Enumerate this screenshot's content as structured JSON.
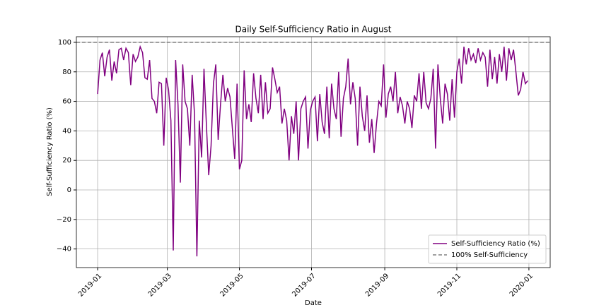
{
  "chart_data": {
    "type": "line",
    "title": "Daily Self-Sufficiency Ratio in August",
    "x_label": "Date",
    "y_label": "Self-Sufficiency Ratio (%)",
    "x": [
      0,
      2,
      4,
      6,
      8,
      10,
      12,
      14,
      16,
      18,
      20,
      22,
      24,
      26,
      28,
      30,
      32,
      34,
      36,
      38,
      40,
      42,
      44,
      46,
      48,
      50,
      52,
      54,
      56,
      58,
      60,
      62,
      64,
      66,
      68,
      70,
      72,
      74,
      76,
      78,
      80,
      82,
      84,
      86,
      88,
      90,
      92,
      94,
      96,
      98,
      100,
      102,
      104,
      106,
      108,
      110,
      112,
      114,
      116,
      118,
      120,
      122,
      124,
      126,
      128,
      130,
      132,
      134,
      136,
      138,
      140,
      142,
      144,
      146,
      148,
      150,
      152,
      154,
      156,
      158,
      160,
      162,
      164,
      166,
      168,
      170,
      172,
      174,
      176,
      178,
      180,
      182,
      184,
      186,
      188,
      190,
      192,
      194,
      196,
      198,
      200,
      202,
      204,
      206,
      208,
      210,
      212,
      214,
      216,
      218,
      220,
      222,
      224,
      226,
      228,
      230,
      232,
      234,
      236,
      238,
      240,
      242,
      244,
      246,
      248,
      250,
      252,
      254,
      256,
      258,
      260,
      262,
      264,
      266,
      268,
      270,
      272,
      274,
      276,
      278,
      280,
      282,
      284,
      286,
      288,
      290,
      292,
      294,
      296,
      298,
      300,
      302,
      304,
      306,
      308,
      310,
      312,
      314,
      316,
      318,
      320,
      322,
      324,
      326,
      328,
      330,
      332,
      334,
      336,
      338,
      340,
      342,
      344,
      346,
      348,
      350,
      352,
      354,
      356,
      358,
      360,
      362,
      364
    ],
    "series": [
      {
        "name": "Self-Sufficiency Ratio (%)",
        "color": "purple",
        "values": [
          65,
          88,
          93,
          77,
          90,
          95,
          74,
          87,
          79,
          95,
          96,
          88,
          96,
          93,
          71,
          92,
          87,
          90,
          97,
          93,
          76,
          75,
          88,
          62,
          60,
          52,
          73,
          72,
          30,
          76,
          68,
          47,
          -41,
          88,
          58,
          5,
          85,
          60,
          55,
          30,
          78,
          51,
          -45,
          47,
          22,
          82,
          45,
          10,
          30,
          72,
          85,
          34,
          58,
          78,
          60,
          69,
          63,
          42,
          21,
          72,
          14,
          20,
          81,
          48,
          58,
          46,
          79,
          62,
          52,
          78,
          48,
          73,
          52,
          55,
          83,
          75,
          66,
          70,
          45,
          55,
          47,
          20,
          50,
          38,
          60,
          20,
          55,
          60,
          63,
          28,
          54,
          60,
          63,
          33,
          65,
          46,
          38,
          70,
          35,
          72,
          55,
          48,
          80,
          36,
          62,
          70,
          89,
          58,
          73,
          62,
          30,
          70,
          50,
          40,
          64,
          32,
          48,
          25,
          45,
          60,
          57,
          85,
          49,
          65,
          70,
          60,
          80,
          52,
          63,
          57,
          45,
          60,
          55,
          42,
          64,
          60,
          79,
          55,
          80,
          59,
          55,
          62,
          82,
          28,
          85,
          62,
          45,
          72,
          65,
          47,
          75,
          49,
          80,
          89,
          72,
          97,
          85,
          96,
          88,
          92,
          86,
          96,
          88,
          93,
          90,
          70,
          95,
          75,
          90,
          72,
          92,
          80,
          97,
          74,
          96,
          88,
          95,
          80,
          64,
          68,
          80,
          72,
          74
        ]
      }
    ],
    "reference_line": {
      "name": "100% Self-Sufficiency",
      "value": 100,
      "color": "gray"
    },
    "xlim": [
      -18,
      383
    ],
    "xticks": [
      {
        "value": 0,
        "label": "2019-01"
      },
      {
        "value": 59,
        "label": "2019-03"
      },
      {
        "value": 120,
        "label": "2019-05"
      },
      {
        "value": 181,
        "label": "2019-07"
      },
      {
        "value": 243,
        "label": "2019-09"
      },
      {
        "value": 304,
        "label": "2019-11"
      },
      {
        "value": 365,
        "label": "2020-01"
      }
    ],
    "ylim": [
      -52.6,
      103.8
    ],
    "yticks": [
      {
        "value": -40,
        "label": "−40"
      },
      {
        "value": -20,
        "label": "−20"
      },
      0,
      20,
      40,
      60,
      80,
      100
    ],
    "grid": true,
    "legend": "lower right"
  }
}
